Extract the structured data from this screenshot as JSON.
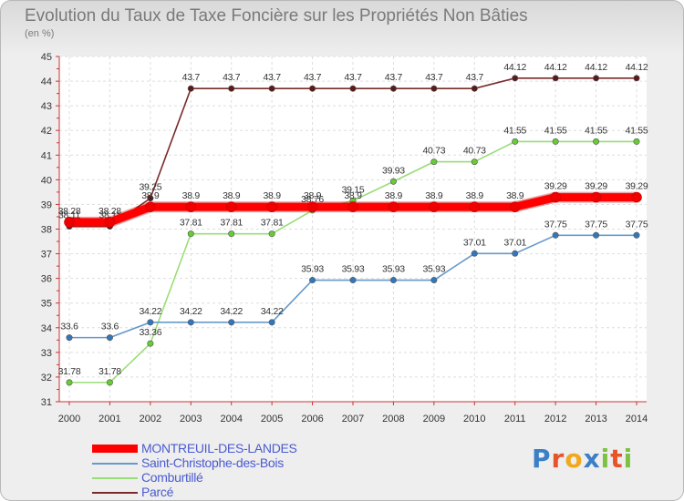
{
  "title": "Evolution du Taux de Taxe Foncière sur les Propriétés Non Bâties",
  "subtitle": "(en %)",
  "logo": {
    "text": [
      "P",
      "r",
      "o",
      "x",
      "i",
      "t",
      "i"
    ],
    "colors": [
      "#3b7fc8",
      "#e8542a",
      "#f2a81d",
      "#3b7fc8",
      "#7cc242",
      "#e8542a",
      "#7cc242"
    ]
  },
  "chart_data": {
    "type": "line",
    "title": "Evolution du Taux de Taxe Foncière sur les Propriétés Non Bâties",
    "ylabel": "(en %)",
    "xlabel": "",
    "ylim": [
      31,
      45
    ],
    "yticks": [
      31,
      32,
      33,
      34,
      35,
      36,
      37,
      38,
      39,
      40,
      41,
      42,
      43,
      44,
      45
    ],
    "x": [
      "2000",
      "2001",
      "2002",
      "2003",
      "2004",
      "2005",
      "2006",
      "2007",
      "2008",
      "2009",
      "2010",
      "2011",
      "2012",
      "2013",
      "2014"
    ],
    "legend_position": "bottom-left",
    "series": [
      {
        "name": "Parcé",
        "color": "#7a2a2a",
        "marker": "#5a1a1a",
        "values": [
          38.11,
          38.11,
          39.25,
          43.7,
          43.7,
          43.7,
          43.7,
          43.7,
          43.7,
          43.7,
          43.7,
          44.12,
          44.12,
          44.12,
          44.12
        ],
        "labels": [
          "38.11",
          "38.11",
          "39.25",
          "43.7",
          "43.7",
          "43.7",
          "43.7",
          "43.7",
          "43.7",
          "43.7",
          "43.7",
          "44.12",
          "44.12",
          "44.12",
          "44.12"
        ]
      },
      {
        "name": "Comburtillé",
        "color": "#99dd77",
        "marker": "#66cc33",
        "values": [
          31.78,
          31.78,
          33.36,
          37.81,
          37.81,
          37.81,
          38.76,
          39.15,
          39.93,
          40.73,
          40.73,
          41.55,
          41.55,
          41.55,
          41.55
        ],
        "labels": [
          "31.78",
          "31.78",
          "33.36",
          "37.81",
          "37.81",
          "37.81",
          "38.76",
          "39.15",
          "39.93",
          "40.73",
          "40.73",
          "41.55",
          "41.55",
          "41.55",
          "41.55"
        ]
      },
      {
        "name": "Saint-Christophe-des-Bois",
        "color": "#6699cc",
        "marker": "#3377bb",
        "values": [
          33.6,
          33.6,
          34.22,
          34.22,
          34.22,
          34.22,
          35.93,
          35.93,
          35.93,
          35.93,
          37.01,
          37.01,
          37.75,
          37.75,
          37.75
        ],
        "labels": [
          "33.6",
          "33.6",
          "34.22",
          "34.22",
          "34.22",
          "34.22",
          "35.93",
          "35.93",
          "35.93",
          "35.93",
          "37.01",
          "37.01",
          "37.75",
          "37.75",
          "37.75"
        ]
      },
      {
        "name": "MONTREUIL-DES-LANDES",
        "color": "#ff0000",
        "marker": "#ee0000",
        "thick": true,
        "values": [
          38.28,
          38.28,
          38.9,
          38.9,
          38.9,
          38.9,
          38.9,
          38.9,
          38.9,
          38.9,
          38.9,
          38.9,
          39.29,
          39.29,
          39.29
        ],
        "labels": [
          "38.28",
          "38.28",
          "38.9",
          "38.9",
          "38.9",
          "38.9",
          "38.9",
          "38.9",
          "38.9",
          "38.9",
          "38.9",
          "38.9",
          "39.29",
          "39.29",
          "39.29"
        ]
      }
    ],
    "legend": [
      {
        "name": "MONTREUIL-DES-LANDES",
        "color": "#ff0000",
        "thick": true
      },
      {
        "name": "Saint-Christophe-des-Bois",
        "color": "#6699cc",
        "thick": false
      },
      {
        "name": "Comburtillé",
        "color": "#99dd77",
        "thick": false
      },
      {
        "name": "Parcé",
        "color": "#7a2a2a",
        "thick": false
      }
    ]
  }
}
